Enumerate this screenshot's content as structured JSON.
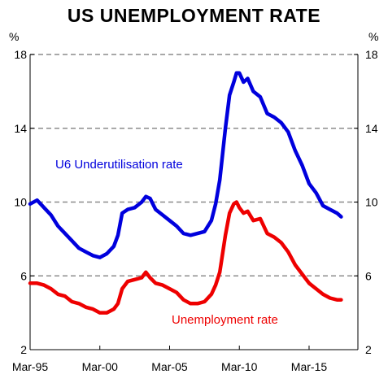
{
  "chart_data": {
    "type": "line",
    "title": "US UNEMPLOYMENT RATE",
    "y_unit_left": "%",
    "y_unit_right": "%",
    "ylim": [
      2,
      18
    ],
    "y_ticks": [
      2,
      6,
      10,
      14,
      18
    ],
    "x_ticks": [
      "Mar-95",
      "Mar-00",
      "Mar-05",
      "Mar-10",
      "Mar-15"
    ],
    "x_tick_years": [
      1995,
      2000,
      2005,
      2010,
      2015
    ],
    "x_range": [
      1995,
      2018.5
    ],
    "grid": "horizontal dashed",
    "series": [
      {
        "name": "U6 Underutilisation rate",
        "color": "#0000dd",
        "x": [
          1995.0,
          1995.5,
          1996.0,
          1996.5,
          1997.0,
          1997.5,
          1998.0,
          1998.5,
          1999.0,
          1999.5,
          2000.0,
          2000.5,
          2001.0,
          2001.3,
          2001.6,
          2002.0,
          2002.5,
          2003.0,
          2003.3,
          2003.6,
          2004.0,
          2004.5,
          2005.0,
          2005.5,
          2006.0,
          2006.5,
          2007.0,
          2007.5,
          2008.0,
          2008.3,
          2008.6,
          2009.0,
          2009.3,
          2009.6,
          2009.8,
          2010.0,
          2010.3,
          2010.6,
          2011.0,
          2011.5,
          2012.0,
          2012.5,
          2013.0,
          2013.5,
          2014.0,
          2014.5,
          2015.0,
          2015.5,
          2016.0,
          2016.5,
          2017.0,
          2017.3
        ],
        "values": [
          9.9,
          10.1,
          9.7,
          9.3,
          8.7,
          8.3,
          7.9,
          7.5,
          7.3,
          7.1,
          7.0,
          7.2,
          7.6,
          8.2,
          9.4,
          9.6,
          9.7,
          10.0,
          10.3,
          10.2,
          9.6,
          9.3,
          9.0,
          8.7,
          8.3,
          8.2,
          8.3,
          8.4,
          9.0,
          9.9,
          11.2,
          14.0,
          15.8,
          16.5,
          17.0,
          17.0,
          16.5,
          16.7,
          16.0,
          15.7,
          14.8,
          14.6,
          14.3,
          13.8,
          12.8,
          12.0,
          11.0,
          10.5,
          9.8,
          9.6,
          9.4,
          9.2
        ]
      },
      {
        "name": "Unemployment rate",
        "color": "#ee0000",
        "x": [
          1995.0,
          1995.5,
          1996.0,
          1996.5,
          1997.0,
          1997.5,
          1998.0,
          1998.5,
          1999.0,
          1999.5,
          2000.0,
          2000.5,
          2001.0,
          2001.3,
          2001.6,
          2002.0,
          2002.5,
          2003.0,
          2003.3,
          2003.6,
          2004.0,
          2004.5,
          2005.0,
          2005.5,
          2006.0,
          2006.5,
          2007.0,
          2007.5,
          2008.0,
          2008.3,
          2008.6,
          2009.0,
          2009.3,
          2009.6,
          2009.8,
          2010.0,
          2010.3,
          2010.6,
          2011.0,
          2011.5,
          2012.0,
          2012.5,
          2013.0,
          2013.5,
          2014.0,
          2014.5,
          2015.0,
          2015.5,
          2016.0,
          2016.5,
          2017.0,
          2017.3
        ],
        "values": [
          5.6,
          5.6,
          5.5,
          5.3,
          5.0,
          4.9,
          4.6,
          4.5,
          4.3,
          4.2,
          4.0,
          4.0,
          4.2,
          4.5,
          5.3,
          5.7,
          5.8,
          5.9,
          6.2,
          5.9,
          5.6,
          5.5,
          5.3,
          5.1,
          4.7,
          4.5,
          4.5,
          4.6,
          5.0,
          5.5,
          6.2,
          8.2,
          9.4,
          9.9,
          10.0,
          9.7,
          9.4,
          9.5,
          9.0,
          9.1,
          8.3,
          8.1,
          7.8,
          7.3,
          6.6,
          6.1,
          5.6,
          5.3,
          5.0,
          4.8,
          4.7,
          4.7
        ]
      }
    ]
  }
}
